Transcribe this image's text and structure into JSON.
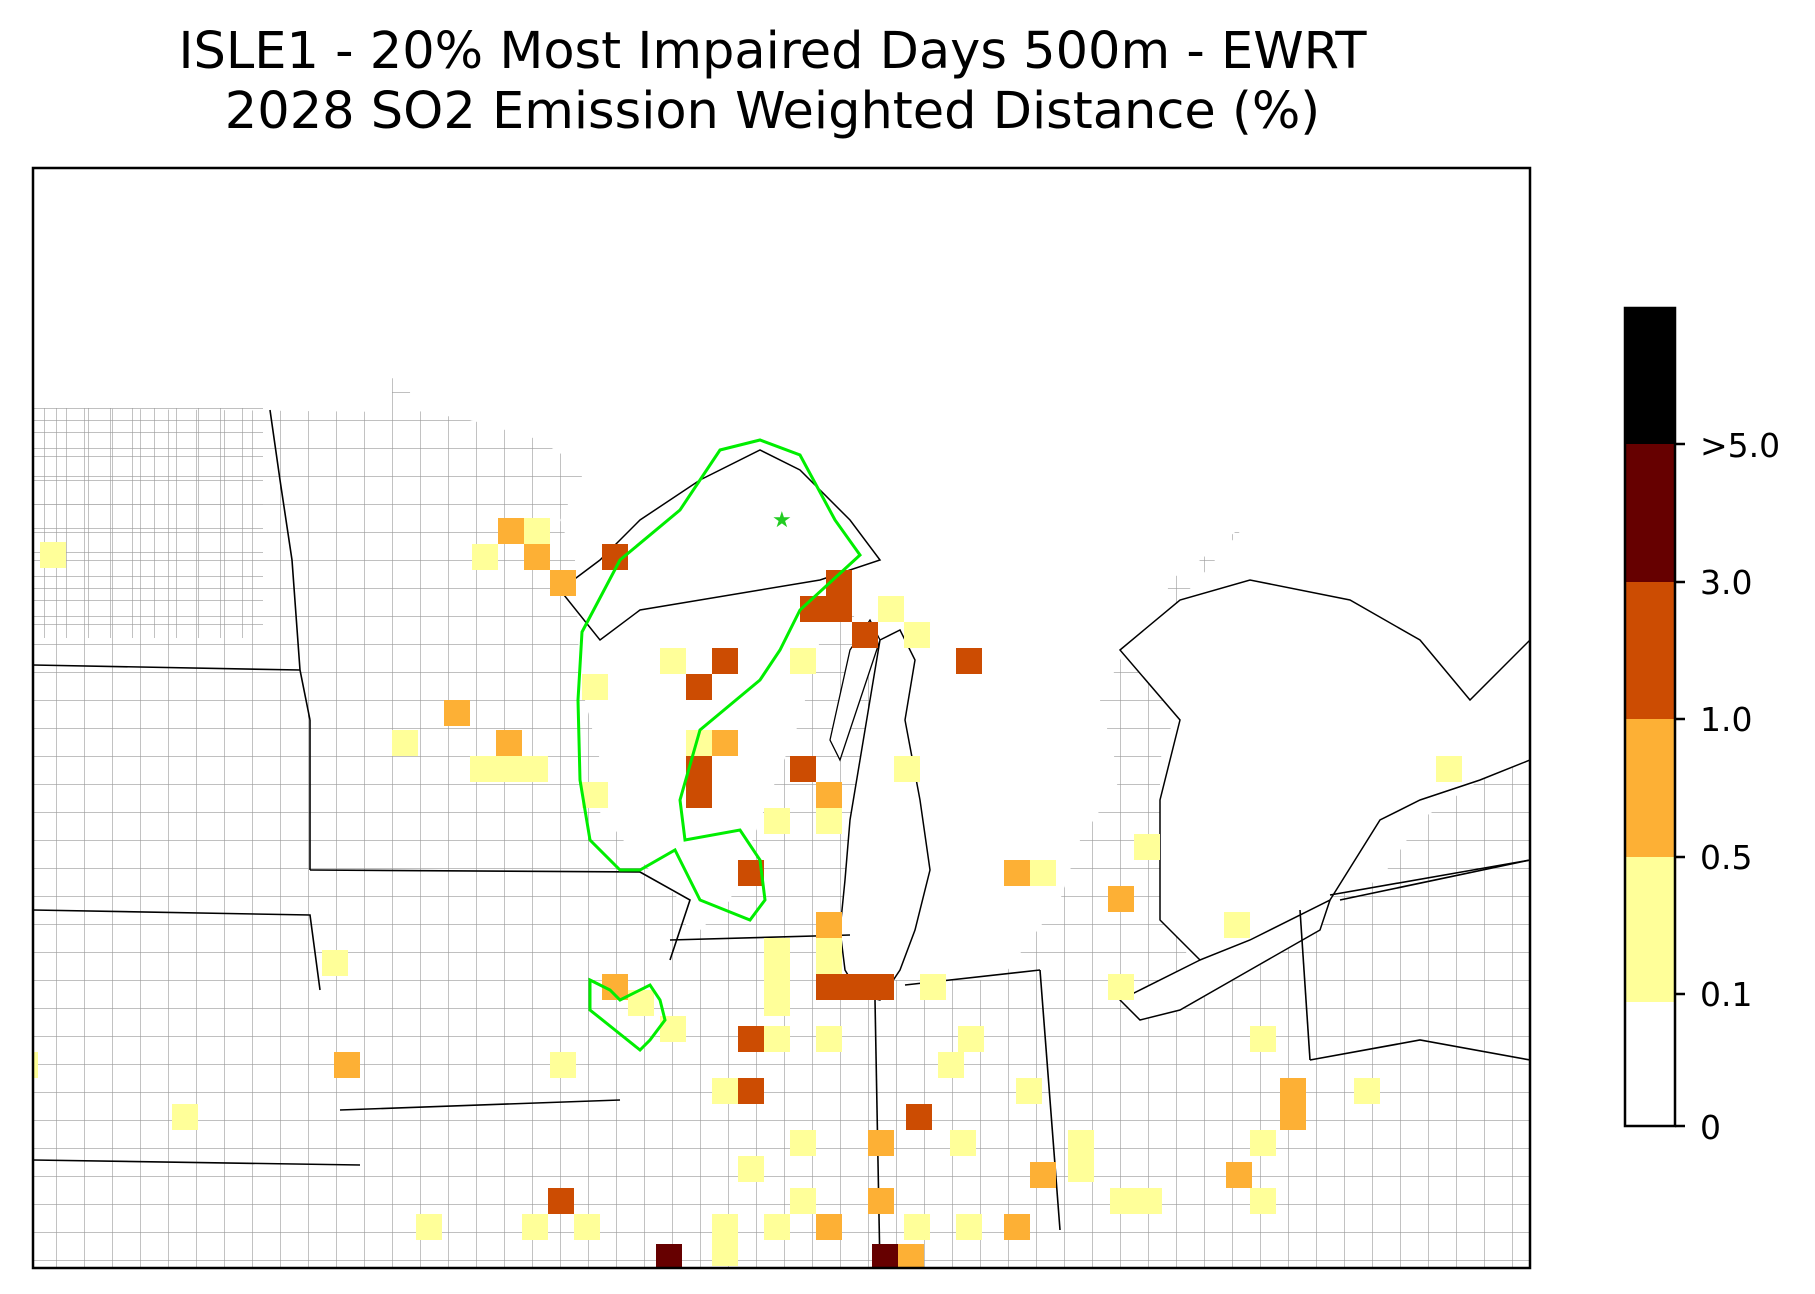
{
  "title": {
    "line1": "ISLE1 - 20% Most Impaired Days 500m - EWRT",
    "line2": "2028 SO2 Emission Weighted Distance (%)"
  },
  "colorbar": {
    "labels": [
      ">5.0",
      "3.0",
      "1.0",
      "0.5",
      "0.1",
      "0"
    ],
    "bins": [
      {
        "color": "#ffffff"
      },
      {
        "color": "#ffff99"
      },
      {
        "color": "#fdb035"
      },
      {
        "color": "#cc4c02"
      },
      {
        "color": "#660000"
      },
      {
        "color": "#000000"
      }
    ]
  },
  "site_marker": {
    "color": "#22cc22"
  },
  "contour_color": "#00ee00"
}
